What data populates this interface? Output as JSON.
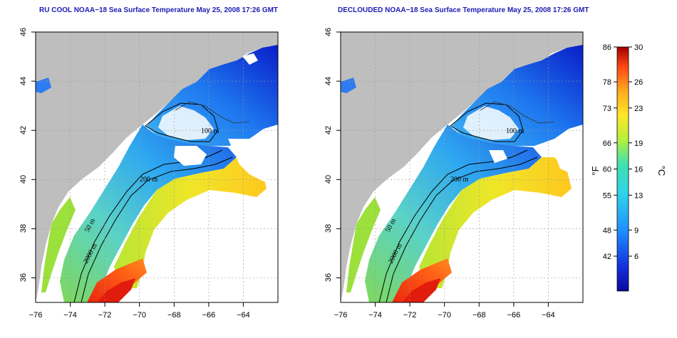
{
  "left_panel": {
    "title": "RU COOL NOAA−18 Sea Surface Temperature May 25, 2008 17:26 GMT",
    "contours": [
      "200 m",
      "50 m",
      "2000 m",
      "100 m"
    ]
  },
  "right_panel": {
    "title": "DECLOUDED NOAA−18 Sea Surface Temperature May 25, 2008 17:26 GMT",
    "contours": [
      "200 m",
      "50 m",
      "2000 m",
      "100 m"
    ]
  },
  "axes": {
    "x_ticks": [
      "−76",
      "−74",
      "−72",
      "−70",
      "−68",
      "−66",
      "−64"
    ],
    "y_ticks": [
      "46",
      "44",
      "42",
      "40",
      "38",
      "36"
    ],
    "x_range": [
      -77.0,
      -63.0
    ],
    "y_range": [
      35.0,
      46.0
    ]
  },
  "colorbar": {
    "f_label": "°F",
    "c_label": "°C",
    "f_ticks": [
      "86",
      "78",
      "73",
      "66",
      "60",
      "55",
      "48",
      "42"
    ],
    "c_ticks": [
      "30",
      "26",
      "23",
      "19",
      "16",
      "13",
      "9",
      "6"
    ],
    "c_values": [
      30,
      26,
      23,
      19,
      16,
      13,
      9,
      6
    ],
    "c_range": [
      2,
      30
    ]
  },
  "colors": {
    "land": "#bebebe",
    "title": "#1c1cb4",
    "cold": "#0000a0",
    "warm": "#c80000"
  }
}
